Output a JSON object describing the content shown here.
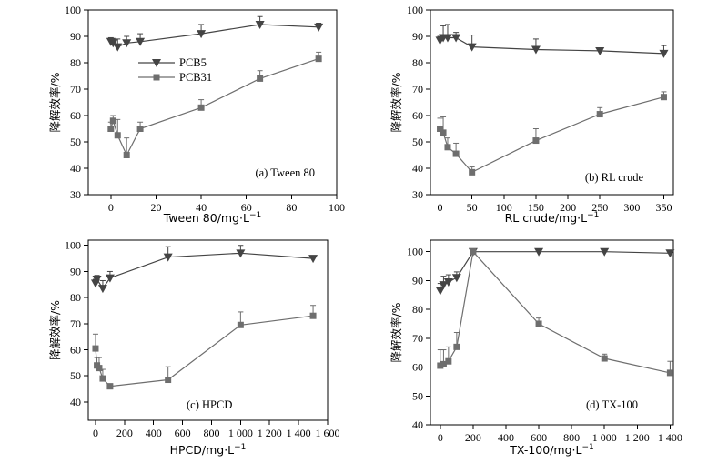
{
  "colors": {
    "pcb5": "#444444",
    "pcb31": "#6e6e6e"
  },
  "chart_data": [
    {
      "type": "line",
      "panel_label": "(a) Tween 80",
      "xlabel": "Tween 80/mg·L",
      "xlabel_sup": "−1",
      "ylabel": "降解效率/%",
      "xlim": [
        -10,
        100
      ],
      "ylim": [
        30,
        100
      ],
      "xticks": [
        0,
        20,
        40,
        60,
        80,
        100
      ],
      "yticks": [
        30,
        40,
        50,
        60,
        70,
        80,
        90,
        100
      ],
      "xtick_labels": [
        "0",
        "20",
        "40",
        "60",
        "80",
        "100"
      ],
      "ytick_labels": [
        "30",
        "40",
        "50",
        "60",
        "70",
        "80",
        "90",
        "100"
      ],
      "legend": {
        "position": "upper-left",
        "entries": [
          "PCB5",
          "PCB31"
        ]
      },
      "series": [
        {
          "name": "PCB5",
          "marker": "triangle-down",
          "x": [
            0,
            1,
            3,
            7,
            13,
            40,
            66,
            92
          ],
          "y": [
            88,
            87.5,
            86,
            87.5,
            88,
            91,
            94.5,
            93.5
          ],
          "err": [
            1.5,
            1.5,
            3,
            2.5,
            3,
            3.5,
            3,
            1.5
          ]
        },
        {
          "name": "PCB31",
          "marker": "square",
          "x": [
            0,
            1,
            3,
            7,
            13,
            40,
            66,
            92
          ],
          "y": [
            55,
            58,
            52.5,
            45,
            55,
            63,
            74,
            81.5
          ],
          "err": [
            2.5,
            2,
            6,
            6.5,
            2.5,
            3,
            3,
            2.5
          ]
        }
      ]
    },
    {
      "type": "line",
      "panel_label": "(b) RL crude",
      "xlabel": "RL crude/mg·L",
      "xlabel_sup": "−1",
      "ylabel": "降解效率/%",
      "xlim": [
        -15,
        365
      ],
      "ylim": [
        30,
        100
      ],
      "xticks": [
        0,
        50,
        100,
        150,
        200,
        250,
        300,
        350
      ],
      "yticks": [
        30,
        40,
        50,
        60,
        70,
        80,
        90,
        100
      ],
      "xtick_labels": [
        "0",
        "50",
        "100",
        "150",
        "200",
        "250",
        "300",
        "350"
      ],
      "ytick_labels": [
        "30",
        "40",
        "50",
        "60",
        "70",
        "80",
        "90",
        "100"
      ],
      "series": [
        {
          "name": "PCB5",
          "marker": "triangle-down",
          "x": [
            0,
            5,
            12,
            25,
            50,
            150,
            250,
            350
          ],
          "y": [
            88.5,
            89.5,
            89.5,
            89.5,
            86,
            85,
            84.5,
            83.5
          ],
          "err": [
            1.5,
            4.5,
            5,
            2,
            4.5,
            4,
            1,
            3
          ]
        },
        {
          "name": "PCB31",
          "marker": "square",
          "x": [
            0,
            5,
            12,
            25,
            50,
            150,
            250,
            350
          ],
          "y": [
            55,
            53.5,
            48,
            45.5,
            38.5,
            50.5,
            60.5,
            67
          ],
          "err": [
            4,
            6,
            3.5,
            4,
            2,
            4.5,
            2.5,
            2
          ]
        }
      ]
    },
    {
      "type": "line",
      "panel_label": "(c) HPCD",
      "xlabel": "HPCD/mg·L",
      "xlabel_sup": "−1",
      "ylabel": "降解效率/%",
      "xlim": [
        -50,
        1600
      ],
      "ylim": [
        33,
        102
      ],
      "xticks": [
        0,
        200,
        400,
        600,
        800,
        1000,
        1200,
        1400,
        1600
      ],
      "yticks": [
        40,
        50,
        60,
        70,
        80,
        90,
        100
      ],
      "xtick_labels": [
        "0",
        "200",
        "400",
        "600",
        "800",
        "1 000",
        "1 200",
        "1 400",
        "1 600"
      ],
      "ytick_labels": [
        "40",
        "50",
        "60",
        "70",
        "80",
        "90",
        "100"
      ],
      "series": [
        {
          "name": "PCB5",
          "marker": "triangle-down",
          "x": [
            0,
            10,
            50,
            100,
            500,
            1000,
            1500
          ],
          "y": [
            85.5,
            87,
            83.5,
            87.5,
            95.5,
            97,
            95
          ],
          "err": [
            1.5,
            1.5,
            3,
            2.5,
            4,
            3,
            1
          ]
        },
        {
          "name": "PCB31",
          "marker": "square",
          "x": [
            0,
            10,
            25,
            50,
            100,
            500,
            1000,
            1500
          ],
          "y": [
            60.5,
            54,
            53,
            49,
            46,
            48.5,
            69.5,
            73
          ],
          "err": [
            5.5,
            3,
            4,
            3.5,
            1,
            5,
            5,
            4
          ]
        }
      ]
    },
    {
      "type": "line",
      "panel_label": "(d) TX-100",
      "xlabel": "TX-100/mg·L",
      "xlabel_sup": "−1",
      "ylabel": "降解效率/%",
      "xlim": [
        -60,
        1420
      ],
      "ylim": [
        40,
        104
      ],
      "xticks": [
        0,
        200,
        400,
        600,
        800,
        1000,
        1200,
        1400
      ],
      "yticks": [
        40,
        50,
        60,
        70,
        80,
        90,
        100
      ],
      "xtick_labels": [
        "0",
        "200",
        "400",
        "600",
        "800",
        "1 000",
        "1 200",
        "1 400"
      ],
      "ytick_labels": [
        "40",
        "50",
        "60",
        "70",
        "80",
        "90",
        "100"
      ],
      "series": [
        {
          "name": "PCB5",
          "marker": "triangle-down",
          "x": [
            0,
            20,
            50,
            100,
            200,
            600,
            1000,
            1400
          ],
          "y": [
            86.5,
            88.5,
            89.5,
            91,
            100,
            100,
            100,
            99.5
          ],
          "err": [
            2.5,
            3,
            2.5,
            2,
            0.5,
            0.5,
            0.5,
            1
          ]
        },
        {
          "name": "PCB31",
          "marker": "square",
          "x": [
            0,
            20,
            50,
            100,
            200,
            600,
            1000,
            1400
          ],
          "y": [
            60.5,
            61,
            62,
            67,
            100,
            75,
            63,
            58
          ],
          "err": [
            5.5,
            5,
            5,
            5,
            1,
            2,
            1.5,
            4
          ]
        }
      ]
    }
  ]
}
